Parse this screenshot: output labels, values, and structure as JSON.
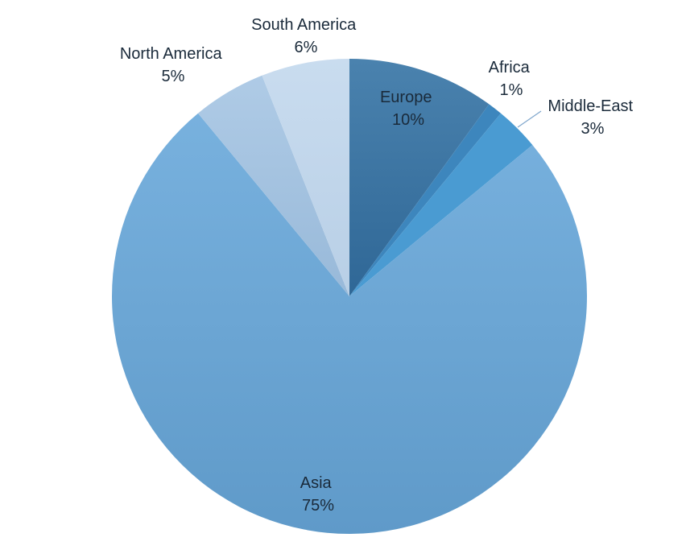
{
  "chart_data": {
    "type": "pie",
    "title": "",
    "start_angle_deg": 0,
    "direction": "clockwise",
    "legend": "none",
    "slices": [
      {
        "name": "Europe",
        "value": 10,
        "label": "10%",
        "color": "#36729f"
      },
      {
        "name": "Africa",
        "value": 1,
        "label": "1%",
        "color": "#3d86bd"
      },
      {
        "name": "Middle-East",
        "value": 3,
        "label": "3%",
        "color": "#4a9bd2"
      },
      {
        "name": "Asia",
        "value": 75,
        "label": "75%",
        "color": "#6ca6d6"
      },
      {
        "name": "North America",
        "value": 5,
        "label": "5%",
        "color": "#a7c6e3"
      },
      {
        "name": "South America",
        "value": 6,
        "label": "6%",
        "color": "#c5d9ee"
      }
    ]
  }
}
